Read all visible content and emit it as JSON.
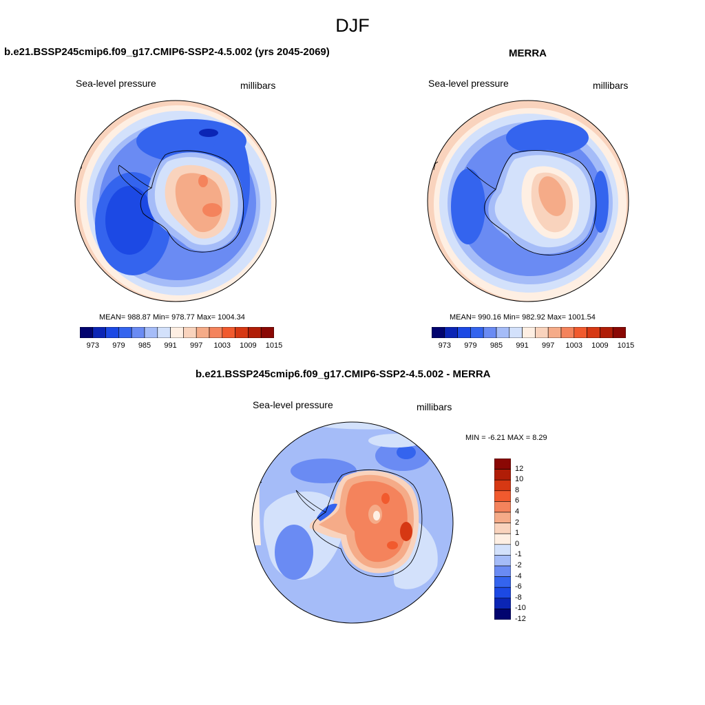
{
  "figure": {
    "season": "DJF"
  },
  "panel_model": {
    "title": "b.e21.BSSP245cmip6.f09_g17.CMIP6-SSP2-4.5.002 (yrs 2045-2069)",
    "variable": "Sea-level pressure",
    "units": "millibars",
    "stats": "MEAN= 988.87  Min= 978.77  Max= 1004.34",
    "mean": 988.87,
    "min": 978.77,
    "max": 1004.34
  },
  "panel_obs": {
    "title": "MERRA",
    "variable": "Sea-level pressure",
    "units": "millibars",
    "stats": "MEAN= 990.16  Min= 982.92  Max= 1001.54",
    "mean": 990.16,
    "min": 982.92,
    "max": 1001.54
  },
  "panel_diff": {
    "title": "b.e21.BSSP245cmip6.f09_g17.CMIP6-SSP2-4.5.002 - MERRA",
    "variable": "Sea-level pressure",
    "units": "millibars",
    "stats": "MIN =  -6.21 MAX =   8.29",
    "min": -6.21,
    "max": 8.29
  },
  "colorbar_horizontal": {
    "tick_labels": [
      "973",
      "979",
      "985",
      "991",
      "997",
      "1003",
      "1009",
      "1015"
    ],
    "colors": [
      "#02046f",
      "#0b25b5",
      "#1c49e4",
      "#3464ee",
      "#6a8bf3",
      "#a5bcf8",
      "#d3e1fb",
      "#feefe3",
      "#f9d3bd",
      "#f5ab88",
      "#f4835c",
      "#f15a2e",
      "#d63813",
      "#b01d07",
      "#8a0804"
    ]
  },
  "colorbar_vertical": {
    "tick_labels": [
      "12",
      "10",
      "8",
      "6",
      "4",
      "2",
      "1",
      "0",
      "-1",
      "-2",
      "-4",
      "-6",
      "-8",
      "-10",
      "-12"
    ],
    "colors": [
      "#8a0804",
      "#b01d07",
      "#d63813",
      "#f15a2e",
      "#f4835c",
      "#f5ab88",
      "#f9d3bd",
      "#feefe3",
      "#d3e1fb",
      "#a5bcf8",
      "#6a8bf3",
      "#3464ee",
      "#1c49e4",
      "#0b25b5",
      "#02046f"
    ]
  }
}
